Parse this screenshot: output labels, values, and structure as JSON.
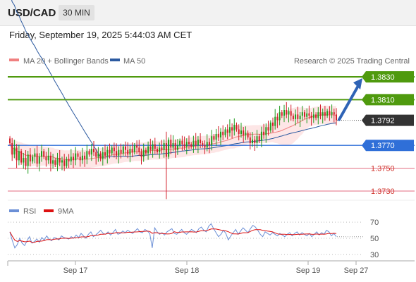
{
  "header": {
    "pair": "USD/CAD",
    "timeframe": "30 MIN"
  },
  "datetime": "Friday, September 19, 2025 5:44:03 AM CET",
  "legend": {
    "ma20": "MA 20 + Bollinger Bands",
    "ma50": "MA 50",
    "credit": "Research © 2025 Trading Central"
  },
  "rsi_legend": {
    "rsi": "RSI",
    "ma9": "9MA"
  },
  "colors": {
    "ma20": "#f08080",
    "ma50": "#2c5aa0",
    "rsi": "#6b8fd6",
    "ma9": "#dd1111",
    "target": "#4f9a0e",
    "pivot": "#2f6fd8",
    "support": "#e36b80",
    "last": "#333333",
    "up_candle": "#1f9c1f",
    "down_candle": "#d21f2a",
    "arrow": "#2f63b5"
  },
  "chart_data": [
    {
      "type": "candlestick",
      "x_ticks": [
        "Sep 17",
        "Sep 18",
        "Sep 19",
        "Sep 27"
      ],
      "price_range": [
        1.3722,
        1.3838
      ],
      "last_price": "1.3792",
      "levels": [
        {
          "price": 1.383,
          "label": "1.3830",
          "kind": "target"
        },
        {
          "price": 1.381,
          "label": "1.3810",
          "kind": "target"
        },
        {
          "price": 1.377,
          "label": "1.3770",
          "kind": "pivot"
        },
        {
          "price": 1.375,
          "label": "1.3750",
          "kind": "support"
        },
        {
          "price": 1.373,
          "label": "1.3730",
          "kind": "support"
        }
      ],
      "arrow": {
        "from": 1.3792,
        "to": 1.383
      },
      "closes": [
        1.3772,
        1.3762,
        1.3768,
        1.3757,
        1.3765,
        1.3755,
        1.3759,
        1.3752,
        1.3762,
        1.3756,
        1.376,
        1.3763,
        1.3754,
        1.376,
        1.3765,
        1.376,
        1.3757,
        1.3761,
        1.3754,
        1.3757,
        1.3753,
        1.3759,
        1.3755,
        1.3757,
        1.3752,
        1.3758,
        1.3756,
        1.376,
        1.3757,
        1.3763,
        1.376,
        1.3757,
        1.3761,
        1.3758,
        1.3765,
        1.3762,
        1.3767,
        1.3764,
        1.376,
        1.3763,
        1.3758,
        1.3764,
        1.3761,
        1.3766,
        1.3763,
        1.3768,
        1.3765,
        1.3761,
        1.3766,
        1.3763,
        1.3769,
        1.3766,
        1.3762,
        1.3767,
        1.3764,
        1.377,
        1.3768,
        1.3764,
        1.376,
        1.3766,
        1.3763,
        1.3769,
        1.3766,
        1.3771,
        1.3767,
        1.3764,
        1.3768,
        1.3766,
        1.3772,
        1.376,
        1.3775,
        1.3768,
        1.3772,
        1.3766,
        1.377,
        1.3774,
        1.3771,
        1.3769,
        1.3773,
        1.3771,
        1.3769,
        1.3774,
        1.377,
        1.3775,
        1.3772,
        1.377,
        1.3768,
        1.3773,
        1.377,
        1.3778,
        1.3775,
        1.378,
        1.3777,
        1.3782,
        1.3779,
        1.3784,
        1.3781,
        1.3786,
        1.3783,
        1.3788,
        1.3784,
        1.378,
        1.3783,
        1.3779,
        1.3781,
        1.3777,
        1.3772,
        1.3775,
        1.3772,
        1.3778,
        1.3774,
        1.3782,
        1.3779,
        1.3786,
        1.3783,
        1.379,
        1.3787,
        1.3795,
        1.3792,
        1.3799,
        1.3796,
        1.3801,
        1.3797,
        1.38,
        1.3796,
        1.3793,
        1.3797,
        1.3793,
        1.3796,
        1.3799,
        1.3795,
        1.3798,
        1.3796,
        1.3794,
        1.3797,
        1.3794,
        1.3799,
        1.3796,
        1.3799,
        1.3796,
        1.38,
        1.3797,
        1.3799,
        1.3797,
        1.3792
      ]
    },
    {
      "type": "line",
      "name": "RSI",
      "y_ticks": [
        70,
        50,
        30
      ],
      "y_range": [
        22,
        78
      ],
      "rsi_values": [
        58,
        47,
        38,
        42,
        50,
        44,
        41,
        47,
        52,
        44,
        46,
        49,
        45,
        51,
        48,
        53,
        49,
        47,
        51,
        50,
        48,
        53,
        51,
        50,
        49,
        52,
        50,
        54,
        51,
        56,
        53,
        50,
        55,
        58,
        52,
        54,
        57,
        60,
        56,
        55,
        58,
        54,
        57,
        61,
        55,
        56,
        59,
        57,
        60,
        58,
        56,
        59,
        62,
        58,
        57,
        61,
        59,
        56,
        38,
        63,
        58,
        55,
        57,
        54,
        58,
        60,
        62,
        56,
        55,
        58,
        61,
        57,
        55,
        58,
        61,
        59,
        57,
        62,
        64,
        60,
        58,
        65,
        68,
        62,
        57,
        52,
        55,
        60,
        56,
        48,
        53,
        57,
        61,
        55,
        59,
        63,
        60,
        57,
        62,
        66,
        64,
        60,
        55,
        52,
        58,
        56,
        54,
        57,
        55,
        53,
        56,
        54,
        52,
        55,
        57,
        53,
        56,
        58,
        54,
        57,
        55,
        53,
        56,
        52,
        55,
        58,
        54,
        57,
        55,
        60,
        58,
        53,
        56,
        52
      ]
    }
  ]
}
